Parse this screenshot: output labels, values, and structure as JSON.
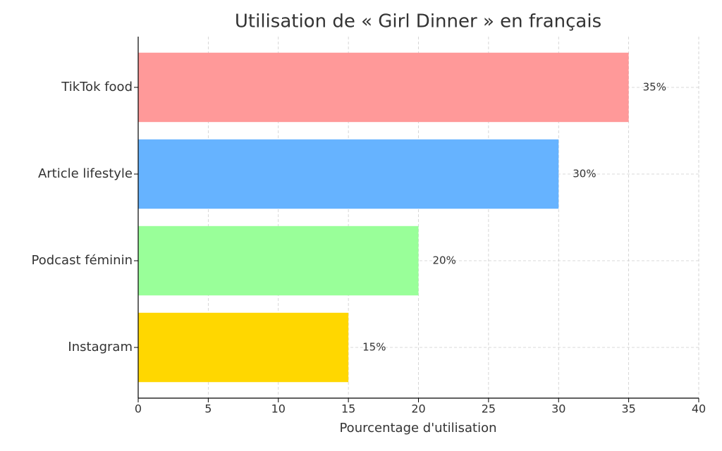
{
  "chart_data": {
    "type": "barh",
    "title": "Utilisation de « Girl Dinner » en français",
    "xlabel": "Pourcentage d'utilisation",
    "categories": [
      "TikTok food",
      "Article lifestyle",
      "Podcast féminin",
      "Instagram"
    ],
    "values": [
      35,
      30,
      20,
      15
    ],
    "value_labels": [
      "35%",
      "30%",
      "20%",
      "15%"
    ],
    "colors": [
      "#ff9999",
      "#66b3ff",
      "#99ff99",
      "#ffd700"
    ],
    "xlim": [
      0,
      40
    ],
    "xticks": [
      0,
      5,
      10,
      15,
      20,
      25,
      30,
      35,
      40
    ],
    "grid": true
  }
}
